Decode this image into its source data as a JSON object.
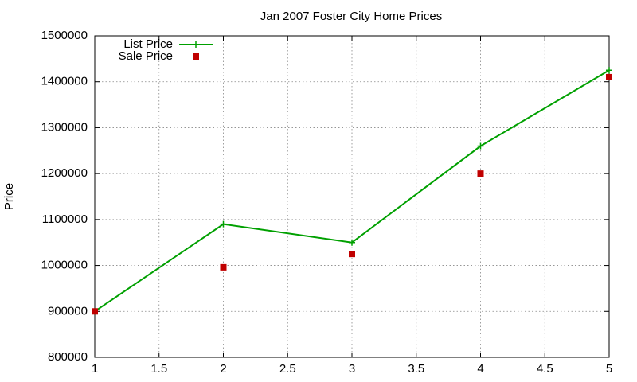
{
  "chart_data": {
    "type": "line",
    "title": "Jan 2007 Foster City Home Prices",
    "ylabel": "Price",
    "x": [
      1,
      2,
      3,
      4,
      5
    ],
    "series": [
      {
        "name": "List Price",
        "color": "#00a000",
        "marker": "plus",
        "line": true,
        "values": [
          900000,
          1090000,
          1050000,
          1260000,
          1425000
        ]
      },
      {
        "name": "Sale Price",
        "color": "#c00000",
        "marker": "square",
        "line": false,
        "values": [
          900000,
          996000,
          1025000,
          1200000,
          1410000
        ]
      }
    ],
    "xlim": [
      1,
      5
    ],
    "xticks": [
      1,
      1.5,
      2,
      2.5,
      3,
      3.5,
      4,
      4.5,
      5
    ],
    "ylim": [
      800000,
      1500000
    ],
    "yticks": [
      800000,
      900000,
      1000000,
      1100000,
      1200000,
      1300000,
      1400000,
      1500000
    ],
    "grid": true,
    "legend": "top-left"
  }
}
